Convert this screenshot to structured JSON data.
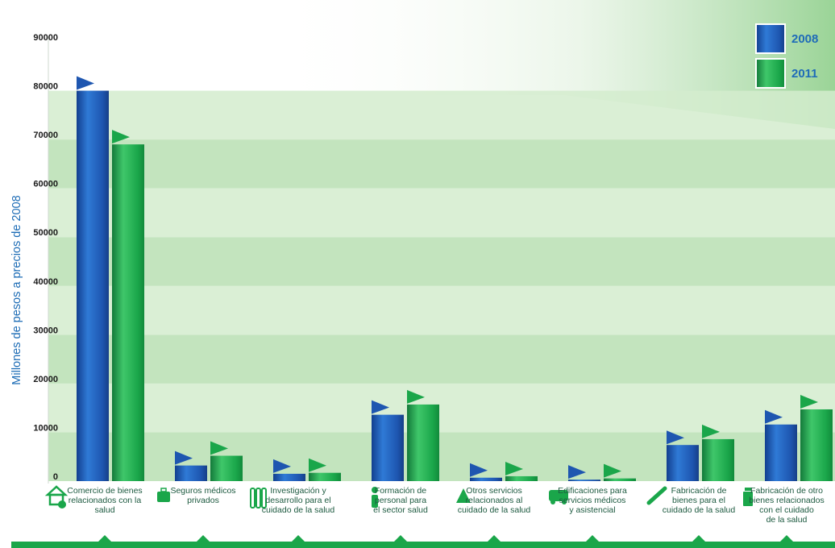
{
  "chart_data": {
    "type": "bar",
    "ylabel": "Millones de pesos a precios de 2008",
    "ylim": [
      0,
      90000
    ],
    "yticks": [
      "0",
      "10000",
      "20000",
      "30000",
      "40000",
      "50000",
      "60000",
      "70000",
      "80000",
      "90000"
    ],
    "categories": [
      [
        "Comercio de bienes",
        "relacionados con la",
        "salud"
      ],
      [
        "Seguros médicos",
        "privados"
      ],
      [
        "Investigación y",
        "desarrollo para el",
        "cuidado de la salud"
      ],
      [
        "Formación de",
        "personal para",
        "el sector salud"
      ],
      [
        "Otros servicios",
        "relacionados  al",
        "cuidado de la salud"
      ],
      [
        "Edificaciones para",
        "servicios médicos",
        "y asistencial"
      ],
      [
        "Fabricación de",
        "bienes para el",
        "cuidado de la salud"
      ],
      [
        "Fabricación de otro",
        "bienes relacionados",
        "con el cuidado",
        "de la salud"
      ]
    ],
    "category_icons": [
      "house-money-icon",
      "medical-kit-icon",
      "test-tubes-icon",
      "person-icon",
      "triangle-icon",
      "ambulance-icon",
      "syringe-icon",
      "medicine-bottle-icon"
    ],
    "series": [
      {
        "name": "2008",
        "color": "#1e56b0",
        "values": [
          80000,
          3200,
          1500,
          13600,
          700,
          300,
          7400,
          11600
        ]
      },
      {
        "name": "2011",
        "color": "#1aa64a",
        "values": [
          69000,
          5200,
          1700,
          15700,
          1000,
          550,
          8600,
          14700
        ]
      }
    ],
    "legend": {
      "placement": "top-right"
    }
  }
}
